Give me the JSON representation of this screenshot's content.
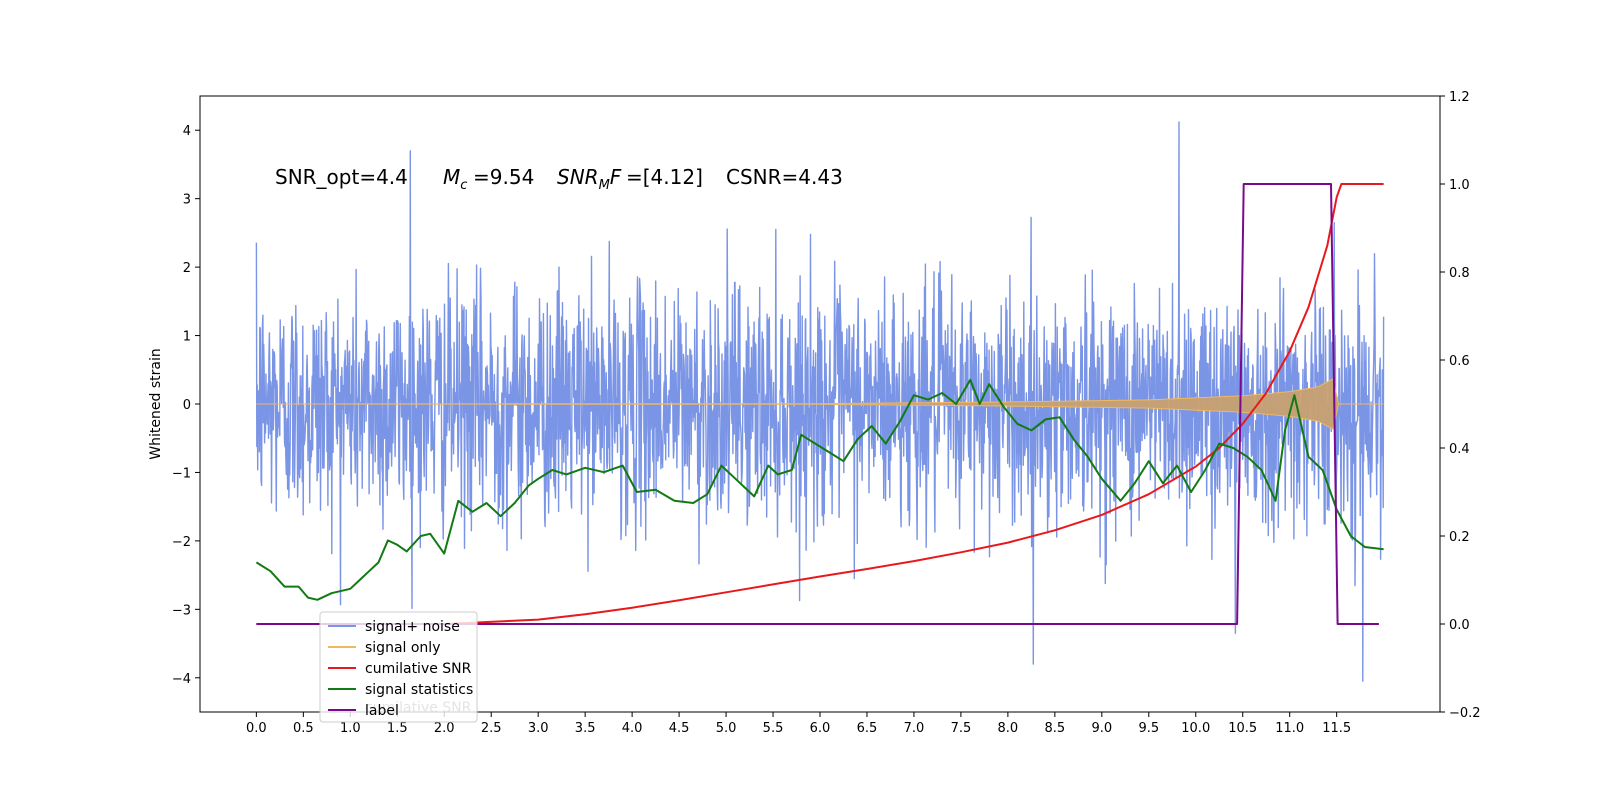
{
  "chart_data": {
    "type": "line",
    "title": "",
    "xlabel": "",
    "ylabel": "Whitened strain",
    "xlim": [
      -0.6,
      12.6
    ],
    "ylim": [
      -4.5,
      4.5
    ],
    "y2lim": [
      -0.2,
      1.2
    ],
    "x_ticks": [
      "0.0",
      "0.5",
      "1.0",
      "1.5",
      "2.0",
      "2.5",
      "3.0",
      "3.5",
      "4.0",
      "4.5",
      "5.0",
      "5.5",
      "6.0",
      "6.5",
      "7.0",
      "7.5",
      "8.0",
      "8.5",
      "9.0",
      "9.5",
      "10.0",
      "10.5",
      "11.0",
      "11.5"
    ],
    "y_ticks": [
      "−4",
      "−3",
      "−2",
      "−1",
      "0",
      "1",
      "2",
      "3",
      "4"
    ],
    "y2_ticks": [
      "−0.2",
      "0.0",
      "0.2",
      "0.4",
      "0.6",
      "0.8",
      "1.0",
      "1.2"
    ],
    "annotations": {
      "snr_opt": "SNR_opt=4.4",
      "mc": "=9.54",
      "snr_mf": "=[4.12]",
      "csnr": "CSNR=4.43"
    },
    "legend": {
      "placement": "lower-left",
      "entries": [
        "signal+ noise",
        "signal only",
        "cumilative SNR",
        "signal statistics",
        "label"
      ],
      "ghost_text": "cumilative SNR"
    },
    "colors": {
      "signal_noise": "#7a94e6",
      "signal_only": "#f0b860",
      "signal_burst": "#c8a070",
      "cumulative_snr": "#e8191c",
      "signal_statistics": "#127a12",
      "label": "#7a0a8c"
    },
    "series": [
      {
        "name": "signal+ noise",
        "axis": "left",
        "x_range": [
          0.0,
          12.0
        ],
        "amplitude_typical": [
          -2.0,
          2.0
        ],
        "extremes": [
          [
            1.64,
            3.7
          ],
          [
            9.82,
            4.12
          ],
          [
            8.27,
            -3.8
          ],
          [
            11.78,
            -4.05
          ],
          [
            10.42,
            -3.35
          ]
        ]
      },
      {
        "name": "signal only",
        "axis": "left",
        "x_range": [
          0.0,
          12.0
        ],
        "envelope": [
          [
            0.0,
            0.0
          ],
          [
            6.0,
            0.005
          ],
          [
            8.0,
            0.03
          ],
          [
            9.5,
            0.06
          ],
          [
            10.5,
            0.12
          ],
          [
            11.0,
            0.18
          ],
          [
            11.3,
            0.25
          ],
          [
            11.48,
            0.38
          ],
          [
            11.5,
            0.0
          ],
          [
            12.0,
            0.0
          ]
        ]
      },
      {
        "name": "cumilative SNR",
        "axis": "right",
        "x": [
          0.0,
          2.0,
          3.0,
          3.5,
          4.0,
          4.5,
          5.0,
          5.5,
          6.0,
          6.5,
          7.0,
          7.5,
          8.0,
          8.5,
          9.0,
          9.5,
          10.0,
          10.25,
          10.5,
          10.75,
          11.0,
          11.2,
          11.4,
          11.5,
          11.55,
          12.0
        ],
        "y": [
          0.0,
          0.0,
          0.01,
          0.022,
          0.037,
          0.054,
          0.072,
          0.09,
          0.108,
          0.125,
          0.143,
          0.163,
          0.185,
          0.213,
          0.248,
          0.295,
          0.358,
          0.4,
          0.455,
          0.525,
          0.62,
          0.72,
          0.86,
          0.97,
          1.0,
          1.0
        ]
      },
      {
        "name": "signal statistics",
        "axis": "right",
        "x": [
          0.0,
          0.15,
          0.3,
          0.45,
          0.55,
          0.65,
          0.8,
          1.0,
          1.1,
          1.2,
          1.3,
          1.4,
          1.5,
          1.6,
          1.75,
          1.85,
          2.0,
          2.15,
          2.3,
          2.45,
          2.6,
          2.75,
          2.9,
          3.0,
          3.15,
          3.3,
          3.5,
          3.7,
          3.9,
          4.05,
          4.25,
          4.45,
          4.65,
          4.8,
          4.95,
          5.1,
          5.3,
          5.45,
          5.55,
          5.7,
          5.8,
          5.95,
          6.1,
          6.25,
          6.4,
          6.55,
          6.7,
          6.85,
          7.0,
          7.15,
          7.3,
          7.45,
          7.6,
          7.7,
          7.8,
          7.95,
          8.1,
          8.25,
          8.4,
          8.55,
          8.7,
          8.85,
          9.0,
          9.2,
          9.35,
          9.5,
          9.65,
          9.8,
          9.95,
          10.1,
          10.25,
          10.4,
          10.55,
          10.7,
          10.85,
          10.95,
          11.05,
          11.2,
          11.35,
          11.5,
          11.65,
          11.8,
          12.0
        ],
        "y": [
          0.14,
          0.12,
          0.085,
          0.085,
          0.06,
          0.055,
          0.07,
          0.08,
          0.1,
          0.12,
          0.14,
          0.19,
          0.18,
          0.165,
          0.2,
          0.205,
          0.16,
          0.28,
          0.255,
          0.275,
          0.245,
          0.275,
          0.315,
          0.33,
          0.35,
          0.34,
          0.355,
          0.345,
          0.36,
          0.3,
          0.305,
          0.28,
          0.275,
          0.295,
          0.36,
          0.33,
          0.29,
          0.36,
          0.34,
          0.35,
          0.43,
          0.41,
          0.39,
          0.37,
          0.42,
          0.45,
          0.41,
          0.46,
          0.52,
          0.51,
          0.525,
          0.5,
          0.555,
          0.5,
          0.545,
          0.495,
          0.455,
          0.44,
          0.465,
          0.47,
          0.42,
          0.38,
          0.33,
          0.28,
          0.32,
          0.37,
          0.32,
          0.36,
          0.3,
          0.35,
          0.41,
          0.4,
          0.38,
          0.35,
          0.28,
          0.44,
          0.52,
          0.38,
          0.35,
          0.26,
          0.2,
          0.175,
          0.17
        ]
      },
      {
        "name": "label",
        "axis": "right",
        "x": [
          0.0,
          10.44,
          10.51,
          11.44,
          11.51,
          11.95
        ],
        "y": [
          0.0,
          0.0,
          1.0,
          1.0,
          0.0,
          0.0
        ]
      }
    ]
  }
}
